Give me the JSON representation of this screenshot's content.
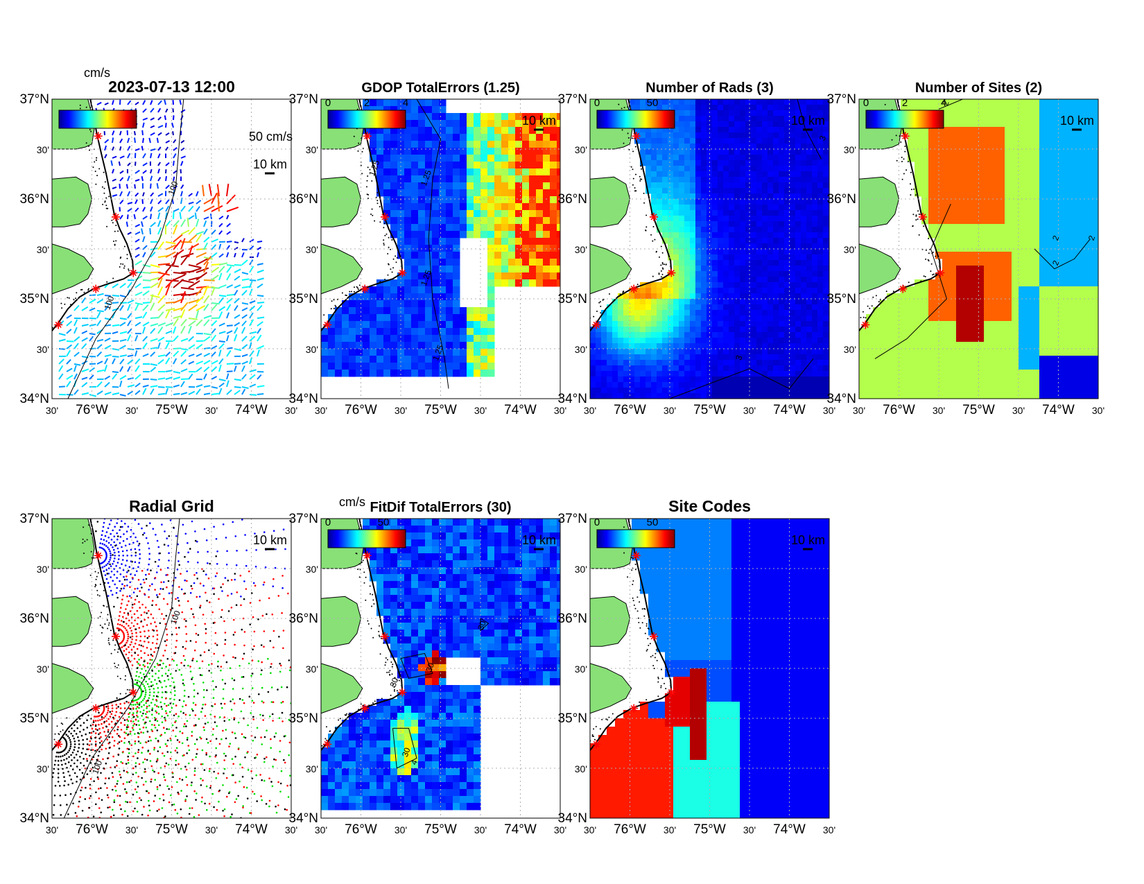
{
  "figure": {
    "panels": [
      {
        "id": "vectors",
        "title": "2023-07-13 12:00",
        "colorbar": {
          "unit": "cm/s",
          "colormap": "jet"
        },
        "annotations": {
          "vector_scale": "50 cm/s",
          "scale_bar": "10 km"
        },
        "contours": [
          {
            "label": "100"
          },
          {
            "label": "100"
          }
        ],
        "map_type": "vector-field"
      },
      {
        "id": "gdop",
        "title": "GDOP TotalErrors (1.25)",
        "colorbar": {
          "ticks": [
            "0",
            "2",
            "4"
          ],
          "colormap": "jet"
        },
        "annotations": {
          "scale_bar": "10 km"
        },
        "contours": [
          {
            "label": "1.25"
          },
          {
            "label": "1.25"
          },
          {
            "label": "1.25"
          },
          {
            "label": "1.25"
          }
        ],
        "map_type": "gridded-error"
      },
      {
        "id": "nrads",
        "title": "Number of Rads (3)",
        "colorbar": {
          "ticks": [
            "0",
            "50"
          ],
          "colormap": "jet"
        },
        "annotations": {
          "scale_bar": "10 km"
        },
        "contours": [
          {
            "label": "3"
          },
          {
            "label": "3"
          }
        ],
        "map_type": "gridded-count"
      },
      {
        "id": "nsites",
        "title": "Number of Sites (2)",
        "colorbar": {
          "ticks": [
            "0",
            "2",
            "4"
          ],
          "colormap": "jet"
        },
        "annotations": {
          "scale_bar": "10 km"
        },
        "contours": [
          {
            "label": "2"
          },
          {
            "label": "2"
          },
          {
            "label": "2"
          },
          {
            "label": "2"
          }
        ],
        "map_type": "gridded-count"
      },
      {
        "id": "radgrid",
        "title": "Radial Grid",
        "annotations": {
          "scale_bar": "10 km"
        },
        "contours": [
          {
            "label": "100"
          },
          {
            "label": "100"
          }
        ],
        "series_colors": [
          "#0000ff",
          "#ff0000",
          "#00dd00",
          "#000000"
        ],
        "map_type": "radial-grid"
      },
      {
        "id": "fitdif",
        "title": "FitDif TotalErrors (30)",
        "colorbar": {
          "unit": "cm/s",
          "ticks": [
            "0",
            "50"
          ],
          "colormap": "jet"
        },
        "annotations": {
          "scale_bar": "10 km"
        },
        "contours": [
          {
            "label": "30"
          },
          {
            "label": "30"
          },
          {
            "label": "30"
          },
          {
            "label": "30"
          },
          {
            "label": "4"
          }
        ],
        "map_type": "gridded-error"
      },
      {
        "id": "sitecodes",
        "title": "Site Codes",
        "colorbar": {
          "ticks": [
            "0",
            "50"
          ],
          "colormap": "jet"
        },
        "annotations": {
          "scale_bar": "10 km"
        },
        "map_type": "gridded-category"
      }
    ],
    "axes": {
      "lat_ticks": [
        "37°N",
        "30'",
        "36°N",
        "30'",
        "35°N",
        "30'",
        "34°N"
      ],
      "lon_ticks": [
        "30'",
        "76°W",
        "30'",
        "75°W",
        "30'",
        "74°W",
        "30'"
      ],
      "lon_range": [
        -76.5,
        -73.5
      ],
      "lat_range": [
        34.0,
        37.0
      ]
    },
    "colors": {
      "land": "#88e077",
      "coastline": "#000000",
      "site_marker": "#ff0000",
      "grid": "#b0b0b0"
    },
    "sites": [
      {
        "lon": -75.92,
        "lat": 36.63
      },
      {
        "lon": -75.7,
        "lat": 35.82
      },
      {
        "lon": -75.48,
        "lat": 35.26
      },
      {
        "lon": -75.95,
        "lat": 35.1
      },
      {
        "lon": -76.42,
        "lat": 34.74
      }
    ]
  }
}
